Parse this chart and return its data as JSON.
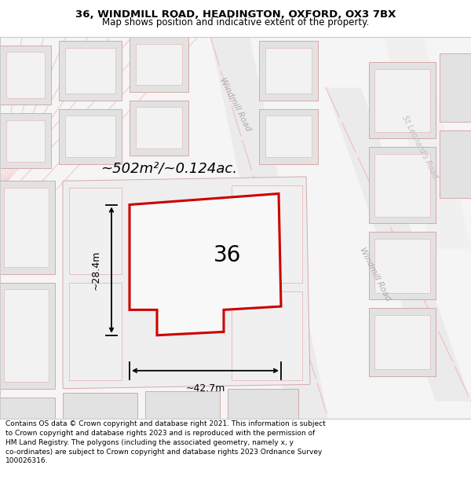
{
  "title": "36, WINDMILL ROAD, HEADINGTON, OXFORD, OX3 7BX",
  "subtitle": "Map shows position and indicative extent of the property.",
  "footer": "Contains OS data © Crown copyright and database right 2021. This information is subject to Crown copyright and database rights 2023 and is reproduced with the permission of HM Land Registry. The polygons (including the associated geometry, namely x, y co-ordinates) are subject to Crown copyright and database rights 2023 Ordnance Survey 100026316.",
  "area_label": "~502m²/~0.124ac.",
  "width_label": "~42.7m",
  "height_label": "~28.4m",
  "number_label": "36",
  "title_fontsize": 9.5,
  "subtitle_fontsize": 8.5,
  "footer_fontsize": 6.5,
  "figsize": [
    6.0,
    6.25
  ],
  "dpi": 100
}
